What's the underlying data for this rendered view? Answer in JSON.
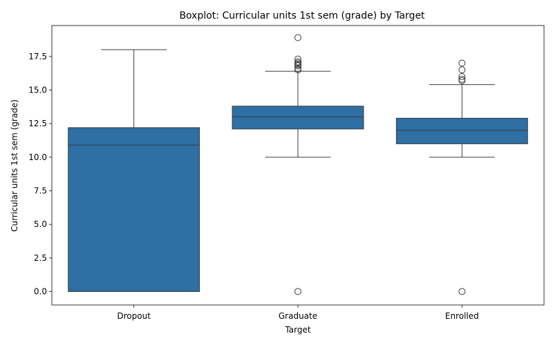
{
  "chart_data": {
    "type": "boxplot",
    "title": "Boxplot: Curricular units 1st sem (grade) by Target",
    "xlabel": "Target",
    "ylabel": "Curricular units 1st sem (grade)",
    "ylim": [
      -1.0,
      19.8
    ],
    "yticks": [
      0.0,
      2.5,
      5.0,
      7.5,
      10.0,
      12.5,
      15.0,
      17.5
    ],
    "ytick_labels": [
      "0.0",
      "2.5",
      "5.0",
      "7.5",
      "10.0",
      "12.5",
      "15.0",
      "17.5"
    ],
    "grid": false,
    "box_color": "#2e6fa4",
    "line_color": "#3a3a3a",
    "categories": [
      "Dropout",
      "Graduate",
      "Enrolled"
    ],
    "boxes": [
      {
        "category": "Dropout",
        "whisker_low": 0.0,
        "q1": 0.0,
        "median": 10.9,
        "q3": 12.2,
        "whisker_high": 18.0,
        "outliers": []
      },
      {
        "category": "Graduate",
        "whisker_low": 10.0,
        "q1": 12.1,
        "median": 13.0,
        "q3": 13.8,
        "whisker_high": 16.4,
        "outliers": [
          0.0,
          16.5,
          16.6,
          16.8,
          16.9,
          17.0,
          17.1,
          17.3,
          18.9
        ]
      },
      {
        "category": "Enrolled",
        "whisker_low": 10.0,
        "q1": 11.0,
        "median": 12.0,
        "q3": 12.9,
        "whisker_high": 15.4,
        "outliers": [
          0.0,
          15.7,
          15.8,
          16.0,
          16.5,
          17.0
        ]
      }
    ]
  }
}
